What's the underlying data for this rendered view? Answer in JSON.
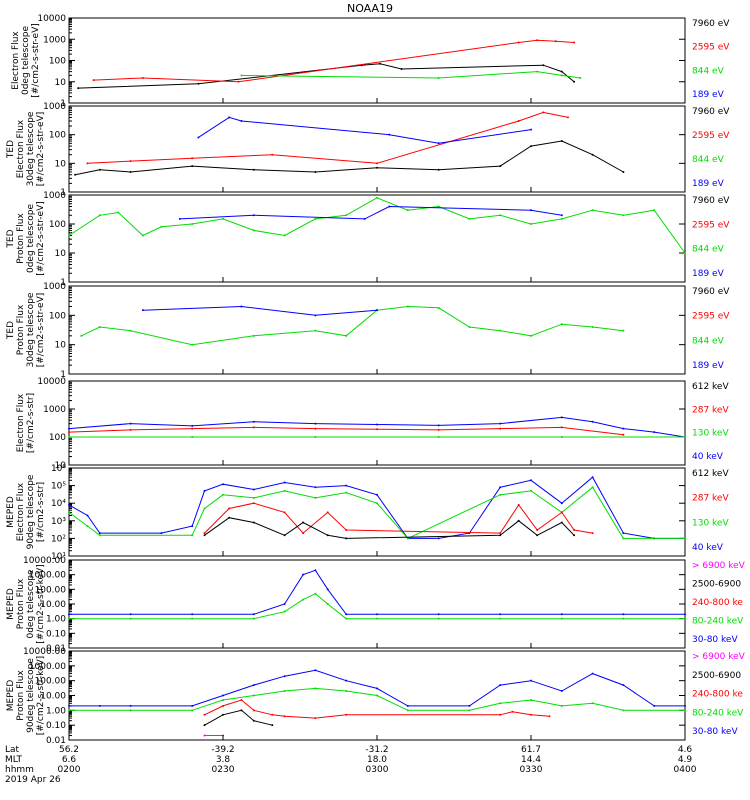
{
  "title": "NOAA19",
  "chart_data": [
    {
      "type": "line",
      "ylabel": "Electron Flux\n0deg telescope\n[#/cm2-s-str-eV]",
      "scale": "log",
      "ylim": [
        1,
        10000
      ],
      "yticks": [
        "1",
        "10",
        "100",
        "1000",
        "10000"
      ],
      "yticks_v": [
        1,
        10,
        100,
        1000,
        10000
      ],
      "channels": [
        {
          "label": "7960 eV",
          "color": "#000000"
        },
        {
          "label": "2595 eV",
          "color": "#ff0000"
        },
        {
          "label": "844 eV",
          "color": "#00dd00"
        },
        {
          "label": "189 eV",
          "color": "#0000ff"
        }
      ],
      "series": [
        {
          "color": "#000000",
          "x": [
            0.015,
            0.21,
            0.475,
            0.505,
            0.54,
            0.77,
            0.8,
            0.82
          ],
          "y": [
            5,
            8,
            60,
            70,
            40,
            60,
            30,
            10
          ]
        },
        {
          "color": "#ff0000",
          "x": [
            0.04,
            0.12,
            0.275,
            0.73,
            0.76,
            0.79,
            0.82
          ],
          "y": [
            12,
            15,
            10,
            700,
            900,
            800,
            700
          ]
        },
        {
          "color": "#00dd00",
          "x": [
            0.28,
            0.6,
            0.76,
            0.8,
            0.83
          ],
          "y": [
            20,
            15,
            30,
            20,
            15
          ]
        }
      ]
    },
    {
      "type": "line",
      "ylabel": "TED\nElectron Flux\n30deg telescope\n[#/cm2-s-str-eV]",
      "scale": "log",
      "ylim": [
        1,
        1000
      ],
      "yticks": [
        "1",
        "10",
        "100",
        "1000"
      ],
      "yticks_v": [
        1,
        10,
        100,
        1000
      ],
      "channels": [
        {
          "label": "7960 eV",
          "color": "#000000"
        },
        {
          "label": "2595 eV",
          "color": "#ff0000"
        },
        {
          "label": "844 eV",
          "color": "#00dd00"
        },
        {
          "label": "189 eV",
          "color": "#0000ff"
        }
      ],
      "series": [
        {
          "color": "#000000",
          "x": [
            0.01,
            0.05,
            0.1,
            0.2,
            0.3,
            0.4,
            0.5,
            0.6,
            0.7,
            0.75,
            0.8,
            0.85,
            0.9
          ],
          "y": [
            4,
            6,
            5,
            8,
            6,
            5,
            7,
            6,
            8,
            40,
            60,
            20,
            5
          ]
        },
        {
          "color": "#ff0000",
          "x": [
            0.03,
            0.1,
            0.2,
            0.33,
            0.5,
            0.73,
            0.77,
            0.81
          ],
          "y": [
            10,
            12,
            15,
            20,
            10,
            300,
            600,
            400
          ]
        },
        {
          "color": "#0000ff",
          "x": [
            0.21,
            0.26,
            0.28,
            0.52,
            0.6,
            0.75
          ],
          "y": [
            80,
            400,
            300,
            100,
            50,
            150
          ]
        }
      ]
    },
    {
      "type": "line",
      "ylabel": "TED\nProton Flux\n0deg telescope\n[#/cm2-s-str-eV]",
      "scale": "log",
      "ylim": [
        1,
        1000
      ],
      "yticks": [
        "1",
        "10",
        "100",
        "1000"
      ],
      "yticks_v": [
        1,
        10,
        100,
        1000
      ],
      "channels": [
        {
          "label": "7960 eV",
          "color": "#000000"
        },
        {
          "label": "2595 eV",
          "color": "#ff0000"
        },
        {
          "label": "844 eV",
          "color": "#00dd00"
        },
        {
          "label": "189 eV",
          "color": "#0000ff"
        }
      ],
      "series": [
        {
          "color": "#00dd00",
          "x": [
            0.0,
            0.05,
            0.08,
            0.12,
            0.15,
            0.2,
            0.25,
            0.3,
            0.35,
            0.4,
            0.45,
            0.5,
            0.55,
            0.6,
            0.65,
            0.7,
            0.75,
            0.8,
            0.85,
            0.9,
            0.95,
            1.0
          ],
          "y": [
            40,
            200,
            250,
            40,
            80,
            100,
            150,
            60,
            40,
            150,
            200,
            800,
            300,
            400,
            150,
            200,
            100,
            150,
            300,
            200,
            300,
            10
          ]
        },
        {
          "color": "#0000ff",
          "x": [
            0.18,
            0.3,
            0.48,
            0.52,
            0.75,
            0.8
          ],
          "y": [
            150,
            200,
            150,
            400,
            300,
            200
          ]
        }
      ]
    },
    {
      "type": "line",
      "ylabel": "TED\nProton Flux\n30deg telescope\n[#/cm2-s-str-eV]",
      "scale": "log",
      "ylim": [
        1,
        1000
      ],
      "yticks": [
        "1",
        "10",
        "100",
        "1000"
      ],
      "yticks_v": [
        1,
        10,
        100,
        1000
      ],
      "channels": [
        {
          "label": "7960 eV",
          "color": "#000000"
        },
        {
          "label": "2595 eV",
          "color": "#ff0000"
        },
        {
          "label": "844 eV",
          "color": "#00dd00"
        },
        {
          "label": "189 eV",
          "color": "#0000ff"
        }
      ],
      "series": [
        {
          "color": "#00dd00",
          "x": [
            0.02,
            0.05,
            0.1,
            0.2,
            0.3,
            0.4,
            0.45,
            0.5,
            0.55,
            0.6,
            0.65,
            0.7,
            0.75,
            0.8,
            0.85,
            0.9
          ],
          "y": [
            20,
            40,
            30,
            10,
            20,
            30,
            20,
            150,
            200,
            180,
            40,
            30,
            20,
            50,
            40,
            30
          ]
        },
        {
          "color": "#0000ff",
          "x": [
            0.12,
            0.28,
            0.4,
            0.5
          ],
          "y": [
            150,
            200,
            100,
            150
          ]
        }
      ]
    },
    {
      "type": "line",
      "ylabel": "Electron Flux\n[#/cm2-s-str]",
      "scale": "log",
      "ylim": [
        10,
        10000
      ],
      "yticks": [
        "10",
        "100",
        "1000",
        "10000"
      ],
      "yticks_v": [
        10,
        100,
        1000,
        10000
      ],
      "channels": [
        {
          "label": "612 keV",
          "color": "#000000"
        },
        {
          "label": "287 keV",
          "color": "#ff0000"
        },
        {
          "label": "130 keV",
          "color": "#00dd00"
        },
        {
          "label": "40 keV",
          "color": "#0000ff"
        }
      ],
      "series": [
        {
          "color": "#0000ff",
          "x": [
            0.0,
            0.1,
            0.2,
            0.3,
            0.4,
            0.5,
            0.6,
            0.7,
            0.8,
            0.85,
            0.9,
            0.95,
            1.0
          ],
          "y": [
            200,
            300,
            250,
            350,
            300,
            280,
            260,
            300,
            500,
            350,
            200,
            150,
            100
          ]
        },
        {
          "color": "#ff0000",
          "x": [
            0.0,
            0.1,
            0.2,
            0.3,
            0.4,
            0.5,
            0.6,
            0.7,
            0.8,
            0.9
          ],
          "y": [
            150,
            180,
            200,
            220,
            200,
            190,
            180,
            200,
            220,
            120
          ]
        },
        {
          "color": "#00dd00",
          "x": [
            0.0,
            0.2,
            0.4,
            0.6,
            0.8,
            1.0
          ],
          "y": [
            100,
            100,
            100,
            100,
            100,
            100
          ]
        }
      ]
    },
    {
      "type": "line",
      "ylabel": "MEPED\nElectron Flux\n90deg telescope\n[#/cm2-s-str]",
      "scale": "log",
      "ylim": [
        10,
        1000000
      ],
      "yticks": [
        "10¹",
        "10²",
        "10³",
        "10⁴",
        "10⁵",
        "10⁶"
      ],
      "yticks_v": [
        10,
        100,
        1000,
        10000,
        100000,
        1000000
      ],
      "channels": [
        {
          "label": "612 keV",
          "color": "#000000"
        },
        {
          "label": "287 keV",
          "color": "#ff0000"
        },
        {
          "label": "130 keV",
          "color": "#00dd00"
        },
        {
          "label": "40 keV",
          "color": "#0000ff"
        }
      ],
      "series": [
        {
          "color": "#0000ff",
          "x": [
            0.0,
            0.03,
            0.05,
            0.15,
            0.2,
            0.22,
            0.25,
            0.3,
            0.35,
            0.4,
            0.45,
            0.5,
            0.55,
            0.6,
            0.65,
            0.7,
            0.75,
            0.8,
            0.85,
            0.9,
            0.95,
            1.0
          ],
          "y": [
            8000,
            2000,
            200,
            200,
            500,
            50000,
            120000,
            60000,
            150000,
            80000,
            100000,
            30000,
            100,
            100,
            200,
            80000,
            200000,
            10000,
            300000,
            200,
            100,
            100
          ]
        },
        {
          "color": "#00dd00",
          "x": [
            0.0,
            0.03,
            0.05,
            0.2,
            0.22,
            0.25,
            0.3,
            0.35,
            0.4,
            0.45,
            0.5,
            0.55,
            0.7,
            0.75,
            0.8,
            0.85,
            0.9,
            1.0
          ],
          "y": [
            3000,
            500,
            150,
            150,
            5000,
            30000,
            20000,
            50000,
            20000,
            40000,
            10000,
            100,
            30000,
            50000,
            3000,
            80000,
            100,
            100
          ]
        },
        {
          "color": "#ff0000",
          "x": [
            0.22,
            0.26,
            0.3,
            0.35,
            0.38,
            0.42,
            0.45,
            0.7,
            0.73,
            0.76,
            0.8,
            0.82,
            0.85
          ],
          "y": [
            200,
            5000,
            10000,
            3000,
            200,
            3000,
            300,
            200,
            8000,
            300,
            3000,
            300,
            200
          ]
        },
        {
          "color": "#000000",
          "x": [
            0.22,
            0.26,
            0.3,
            0.35,
            0.38,
            0.42,
            0.45,
            0.7,
            0.73,
            0.76,
            0.8,
            0.82
          ],
          "y": [
            150,
            1500,
            800,
            150,
            800,
            150,
            100,
            150,
            1000,
            150,
            800,
            150
          ]
        }
      ]
    },
    {
      "type": "line",
      "ylabel": "MEPED\nProton Flux\n0deg telescope\n[#/cm2-s-str-keV]",
      "scale": "log",
      "ylim": [
        0.01,
        10000
      ],
      "yticks": [
        "0.01",
        "0.10",
        "1.00",
        "10.00",
        "100.00",
        "1000.00",
        "10000.00"
      ],
      "yticks_v": [
        0.01,
        0.1,
        1,
        10,
        100,
        1000,
        10000
      ],
      "channels": [
        {
          "label": "> 6900 keV",
          "color": "#ff00ff"
        },
        {
          "label": "2500-6900",
          "color": "#000000"
        },
        {
          "label": "240-800 ke",
          "color": "#ff0000"
        },
        {
          "label": "80-240 keV",
          "color": "#00dd00"
        },
        {
          "label": "30-80 keV",
          "color": "#0000ff"
        }
      ],
      "series": [
        {
          "color": "#0000ff",
          "x": [
            0.0,
            0.1,
            0.2,
            0.3,
            0.35,
            0.38,
            0.4,
            0.42,
            0.45,
            0.5,
            0.6,
            0.7,
            0.8,
            0.9,
            1.0
          ],
          "y": [
            2,
            2,
            2,
            2,
            10,
            1000,
            2000,
            100,
            2,
            2,
            2,
            2,
            2,
            2,
            2
          ]
        },
        {
          "color": "#00dd00",
          "x": [
            0.0,
            0.1,
            0.2,
            0.3,
            0.35,
            0.38,
            0.4,
            0.42,
            0.45,
            0.5,
            0.6,
            0.7,
            0.8,
            0.9,
            1.0
          ],
          "y": [
            1,
            1,
            1,
            1,
            3,
            20,
            50,
            10,
            1,
            1,
            1,
            1,
            1,
            1,
            1
          ]
        }
      ]
    },
    {
      "type": "line",
      "ylabel": "MEPED\nProton Flux\n90deg telescope\n[#/cm2-s-str-keV]",
      "scale": "log",
      "ylim": [
        0.01,
        10000
      ],
      "yticks": [
        "0.01",
        "0.10",
        "1.00",
        "10.00",
        "100.00",
        "1000.00",
        "10000.00"
      ],
      "yticks_v": [
        0.01,
        0.1,
        1,
        10,
        100,
        1000,
        10000
      ],
      "channels": [
        {
          "label": "> 6900 keV",
          "color": "#ff00ff"
        },
        {
          "label": "2500-6900",
          "color": "#000000"
        },
        {
          "label": "240-800 ke",
          "color": "#ff0000"
        },
        {
          "label": "80-240 keV",
          "color": "#00dd00"
        },
        {
          "label": "30-80 keV",
          "color": "#0000ff"
        }
      ],
      "series": [
        {
          "color": "#0000ff",
          "x": [
            0.0,
            0.05,
            0.1,
            0.2,
            0.25,
            0.3,
            0.35,
            0.4,
            0.45,
            0.5,
            0.55,
            0.65,
            0.7,
            0.75,
            0.8,
            0.85,
            0.9,
            0.95,
            1.0
          ],
          "y": [
            2,
            2,
            2,
            2,
            10,
            50,
            200,
            500,
            100,
            30,
            2,
            2,
            50,
            100,
            20,
            300,
            50,
            2,
            2
          ]
        },
        {
          "color": "#00dd00",
          "x": [
            0.0,
            0.1,
            0.2,
            0.25,
            0.3,
            0.35,
            0.4,
            0.45,
            0.5,
            0.55,
            0.65,
            0.7,
            0.75,
            0.8,
            0.85,
            0.9,
            1.0
          ],
          "y": [
            1,
            1,
            1,
            5,
            10,
            20,
            30,
            20,
            10,
            1,
            1,
            3,
            5,
            2,
            3,
            1,
            1
          ]
        },
        {
          "color": "#ff0000",
          "x": [
            0.22,
            0.25,
            0.28,
            0.3,
            0.33,
            0.35,
            0.4,
            0.45,
            0.7,
            0.72,
            0.75,
            0.78
          ],
          "y": [
            0.5,
            2,
            5,
            1,
            0.5,
            0.4,
            0.3,
            0.5,
            0.5,
            0.8,
            0.5,
            0.4
          ]
        },
        {
          "color": "#000000",
          "x": [
            0.22,
            0.25,
            0.28,
            0.3,
            0.33
          ],
          "y": [
            0.1,
            0.5,
            1,
            0.2,
            0.1
          ]
        },
        {
          "color": "#ff00ff",
          "x": [
            0.22,
            0.25
          ],
          "y": [
            0.02,
            0.02
          ]
        }
      ]
    }
  ],
  "x_axis": {
    "row_labels": [
      "Lat",
      "MLT",
      "hhmm",
      "2019 Apr 26"
    ],
    "ticks": [
      {
        "lat": "56.2",
        "mlt": "6.6",
        "hhmm": "0200"
      },
      {
        "lat": "-39.2",
        "mlt": "3.8",
        "hhmm": "0230"
      },
      {
        "lat": "-31.2",
        "mlt": "18.0",
        "hhmm": "0300"
      },
      {
        "lat": "61.7",
        "mlt": "14.4",
        "hhmm": "0330"
      },
      {
        "lat": "4.6",
        "mlt": "4.9",
        "hhmm": "0400"
      }
    ]
  }
}
